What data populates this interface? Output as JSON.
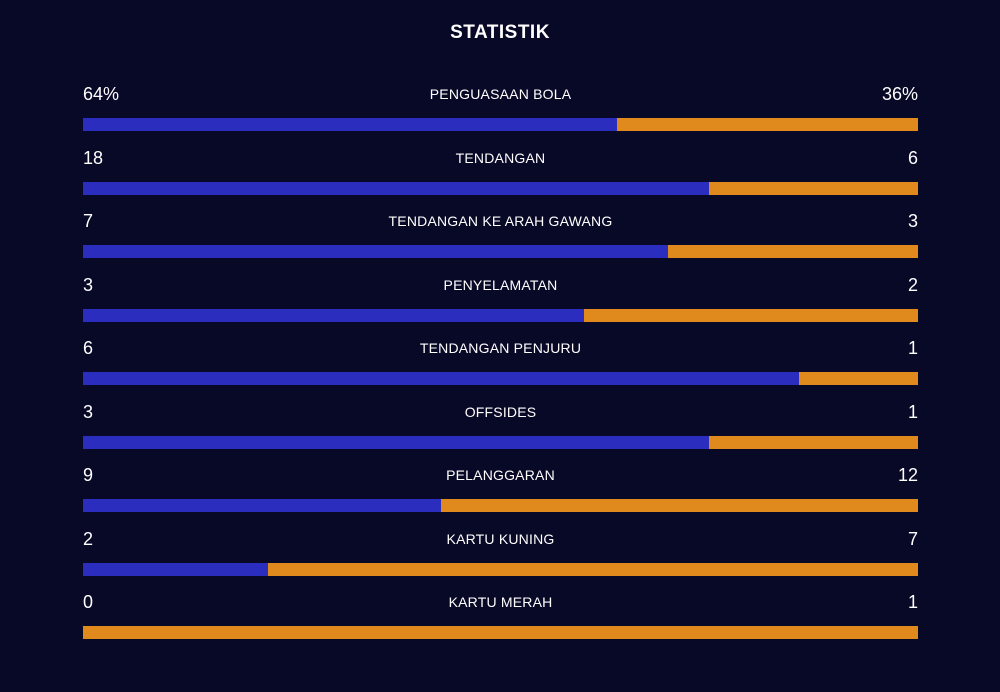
{
  "title": "STATISTIK",
  "colors": {
    "background": "#080827",
    "home": "#2a2dbd",
    "away": "#e08a1e",
    "text": "#ffffff"
  },
  "stats": [
    {
      "label": "PENGUASAAN BOLA",
      "home": "64%",
      "away": "36%",
      "home_share": 0.64
    },
    {
      "label": "TENDANGAN",
      "home": "18",
      "away": "6",
      "home_share": 0.75
    },
    {
      "label": "TENDANGAN KE ARAH GAWANG",
      "home": "7",
      "away": "3",
      "home_share": 0.7
    },
    {
      "label": "PENYELAMATAN",
      "home": "3",
      "away": "2",
      "home_share": 0.6
    },
    {
      "label": "TENDANGAN PENJURU",
      "home": "6",
      "away": "1",
      "home_share": 0.857
    },
    {
      "label": "OFFSIDES",
      "home": "3",
      "away": "1",
      "home_share": 0.75
    },
    {
      "label": "PELANGGARAN",
      "home": "9",
      "away": "12",
      "home_share": 0.429
    },
    {
      "label": "KARTU KUNING",
      "home": "2",
      "away": "7",
      "home_share": 0.222
    },
    {
      "label": "KARTU MERAH",
      "home": "0",
      "away": "1",
      "home_share": 0.0
    }
  ]
}
